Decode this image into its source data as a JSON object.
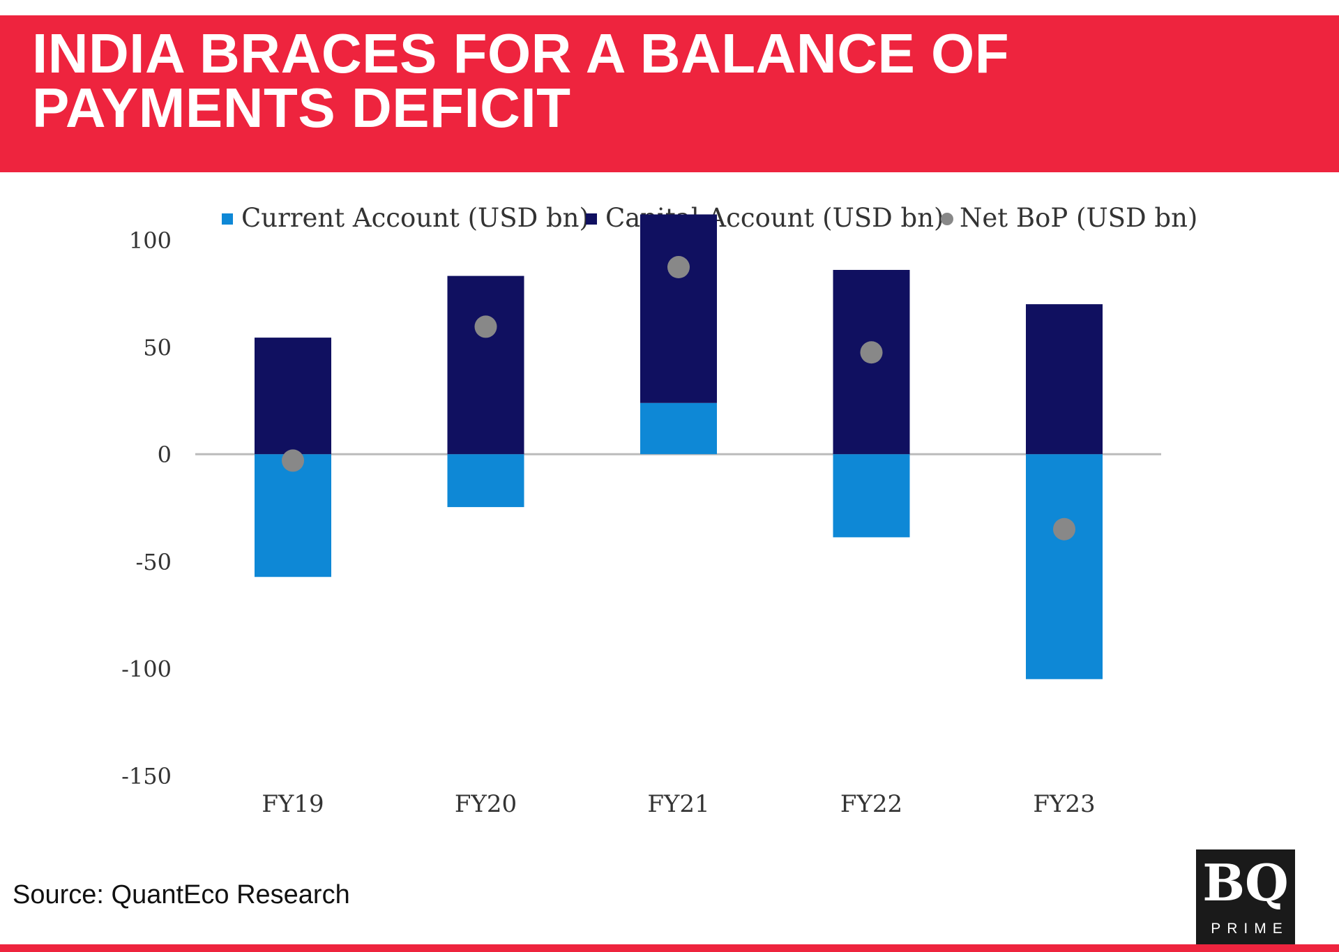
{
  "headline": "INDIA BRACES FOR A BALANCE OF PAYMENTS DEFICIT",
  "source": "Source: QuantEco Research",
  "logo": {
    "mark": "BQ",
    "sub": "PRIME"
  },
  "colors": {
    "banner": "#ee243e",
    "current_account": "#0e88d6",
    "capital_account": "#101060",
    "net_bop": "#888888",
    "zero_line": "#bbbbbb"
  },
  "chart_data": {
    "type": "bar",
    "stacked": true,
    "categories": [
      "FY19",
      "FY20",
      "FY21",
      "FY22",
      "FY23"
    ],
    "series": [
      {
        "name": "Current Account (USD bn)",
        "kind": "bar",
        "values": [
          -57.3,
          -24.7,
          23.9,
          -38.8,
          -105
        ]
      },
      {
        "name": "Capital Account (USD bn)",
        "kind": "bar",
        "values": [
          54.4,
          83.2,
          88.0,
          86.0,
          70.0
        ]
      },
      {
        "name": "Net BoP (USD bn)",
        "kind": "scatter",
        "values": [
          -3.0,
          59.5,
          87.3,
          47.5,
          -35.0
        ]
      }
    ],
    "y_ticks": [
      "100",
      "50",
      "0",
      "-50",
      "-100",
      "-150"
    ],
    "ylim": [
      -150,
      100
    ],
    "legend_position": "top",
    "grid": false
  }
}
